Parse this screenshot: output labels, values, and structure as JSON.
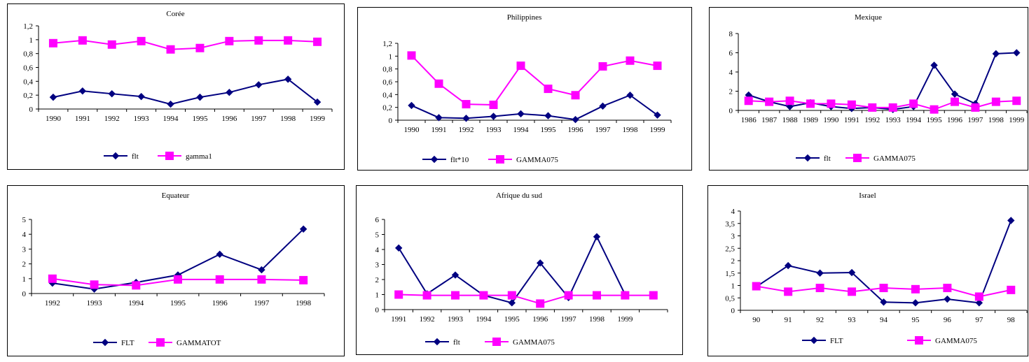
{
  "chart_data": [
    {
      "type": "line",
      "title": "Corée",
      "categories": [
        "1990",
        "1991",
        "1992",
        "1993",
        "1994",
        "1995",
        "1996",
        "1997",
        "1998",
        "1999"
      ],
      "ylim": [
        0,
        1.2
      ],
      "yticks": [
        "0",
        "0,2",
        "0,4",
        "0,6",
        "0,8",
        "1",
        "1,2"
      ],
      "ytick_values": [
        0,
        0.2,
        0.4,
        0.6,
        0.8,
        1.0,
        1.2
      ],
      "grid": false,
      "legend_position": "bottom",
      "series": [
        {
          "name": "flt",
          "color": "#000080",
          "marker": "diamond",
          "values": [
            0.17,
            0.26,
            0.22,
            0.18,
            0.07,
            0.17,
            0.24,
            0.35,
            0.43,
            0.1
          ]
        },
        {
          "name": "gamma1",
          "color": "#ff00ff",
          "marker": "square",
          "values": [
            0.95,
            0.99,
            0.93,
            0.98,
            0.86,
            0.88,
            0.98,
            0.99,
            0.99,
            0.97
          ]
        }
      ]
    },
    {
      "type": "line",
      "title": "Philippines",
      "categories": [
        "1990",
        "1991",
        "1992",
        "1993",
        "1994",
        "1995",
        "1996",
        "1997",
        "1998",
        "1999"
      ],
      "ylim": [
        0,
        1.2
      ],
      "yticks": [
        "0",
        "0,2",
        "0,4",
        "0,6",
        "0,8",
        "1",
        "1,2"
      ],
      "ytick_values": [
        0,
        0.2,
        0.4,
        0.6,
        0.8,
        1.0,
        1.2
      ],
      "grid": false,
      "legend_position": "bottom",
      "series": [
        {
          "name": "flt*10",
          "color": "#000080",
          "marker": "diamond",
          "values": [
            0.23,
            0.04,
            0.03,
            0.06,
            0.1,
            0.07,
            0.01,
            0.22,
            0.39,
            0.08
          ]
        },
        {
          "name": "GAMMA075",
          "color": "#ff00ff",
          "marker": "square",
          "values": [
            1.01,
            0.57,
            0.25,
            0.24,
            0.85,
            0.49,
            0.39,
            0.84,
            0.93,
            0.85
          ]
        }
      ]
    },
    {
      "type": "line",
      "title": "Mexique",
      "categories": [
        "1986",
        "1987",
        "1988",
        "1989",
        "1990",
        "1991",
        "1992",
        "1993",
        "1994",
        "1995",
        "1996",
        "1997",
        "1998",
        "1999"
      ],
      "ylim": [
        0,
        8
      ],
      "yticks": [
        "0",
        "2",
        "4",
        "6",
        "8"
      ],
      "ytick_values": [
        0,
        2,
        4,
        6,
        8
      ],
      "grid": false,
      "legend_position": "bottom",
      "series": [
        {
          "name": "flt",
          "color": "#000080",
          "marker": "diamond",
          "values": [
            1.6,
            0.9,
            0.4,
            0.8,
            0.4,
            0.2,
            0.3,
            0.1,
            0.4,
            4.7,
            1.7,
            0.7,
            5.9,
            6.0
          ]
        },
        {
          "name": "GAMMA075",
          "color": "#ff00ff",
          "marker": "square",
          "values": [
            1.0,
            0.9,
            1.0,
            0.7,
            0.7,
            0.6,
            0.3,
            0.3,
            0.7,
            0.1,
            0.9,
            0.3,
            0.9,
            1.0
          ]
        }
      ]
    },
    {
      "type": "line",
      "title": "Equateur",
      "categories": [
        "1992",
        "1993",
        "1994",
        "1995",
        "1996",
        "1997",
        "1998"
      ],
      "ylim": [
        0,
        5
      ],
      "yticks": [
        "0",
        "1",
        "2",
        "3",
        "4",
        "5"
      ],
      "ytick_values": [
        0,
        1,
        2,
        3,
        4,
        5
      ],
      "grid": false,
      "legend_position": "bottom",
      "series": [
        {
          "name": "FLT",
          "color": "#000080",
          "marker": "diamond",
          "values": [
            0.7,
            0.3,
            0.75,
            1.25,
            2.65,
            1.6,
            4.35
          ]
        },
        {
          "name": "GAMMATOT",
          "color": "#ff00ff",
          "marker": "square",
          "values": [
            1.0,
            0.6,
            0.55,
            0.95,
            0.95,
            0.95,
            0.9
          ]
        }
      ]
    },
    {
      "type": "line",
      "title": "Afrique du sud",
      "categories": [
        "1991",
        "1992",
        "1993",
        "1994",
        "1995",
        "1996",
        "1997",
        "1998",
        "1999",
        ""
      ],
      "ylim": [
        0,
        6
      ],
      "yticks": [
        "0",
        "1",
        "2",
        "3",
        "4",
        "5",
        "6"
      ],
      "ytick_values": [
        0,
        1,
        2,
        3,
        4,
        5,
        6
      ],
      "grid": false,
      "legend_position": "bottom",
      "series": [
        {
          "name": "flt",
          "color": "#000080",
          "marker": "diamond",
          "values": [
            4.1,
            1.05,
            2.3,
            0.95,
            0.45,
            3.1,
            0.8,
            4.85,
            1.0,
            null
          ]
        },
        {
          "name": "GAMMA075",
          "color": "#ff00ff",
          "marker": "square",
          "values": [
            1.0,
            0.95,
            0.95,
            0.95,
            0.95,
            0.4,
            0.95,
            0.95,
            0.95,
            0.95
          ]
        }
      ]
    },
    {
      "type": "line",
      "title": "Israel",
      "categories": [
        "90",
        "91",
        "92",
        "93",
        "94",
        "95",
        "96",
        "97",
        "98"
      ],
      "ylim": [
        0,
        4
      ],
      "yticks": [
        "0",
        "0,5",
        "1",
        "1,5",
        "2",
        "2,5",
        "3",
        "3,5",
        "4"
      ],
      "ytick_values": [
        0,
        0.5,
        1.0,
        1.5,
        2.0,
        2.5,
        3.0,
        3.5,
        4.0
      ],
      "grid": false,
      "legend_position": "bottom",
      "series": [
        {
          "name": "FLT",
          "color": "#000080",
          "marker": "diamond",
          "values": [
            0.95,
            1.8,
            1.5,
            1.52,
            0.33,
            0.3,
            0.45,
            0.3,
            3.62
          ]
        },
        {
          "name": "GAMMA075",
          "color": "#ff00ff",
          "marker": "square",
          "values": [
            0.97,
            0.75,
            0.9,
            0.75,
            0.9,
            0.85,
            0.9,
            0.55,
            0.82
          ]
        }
      ]
    }
  ]
}
